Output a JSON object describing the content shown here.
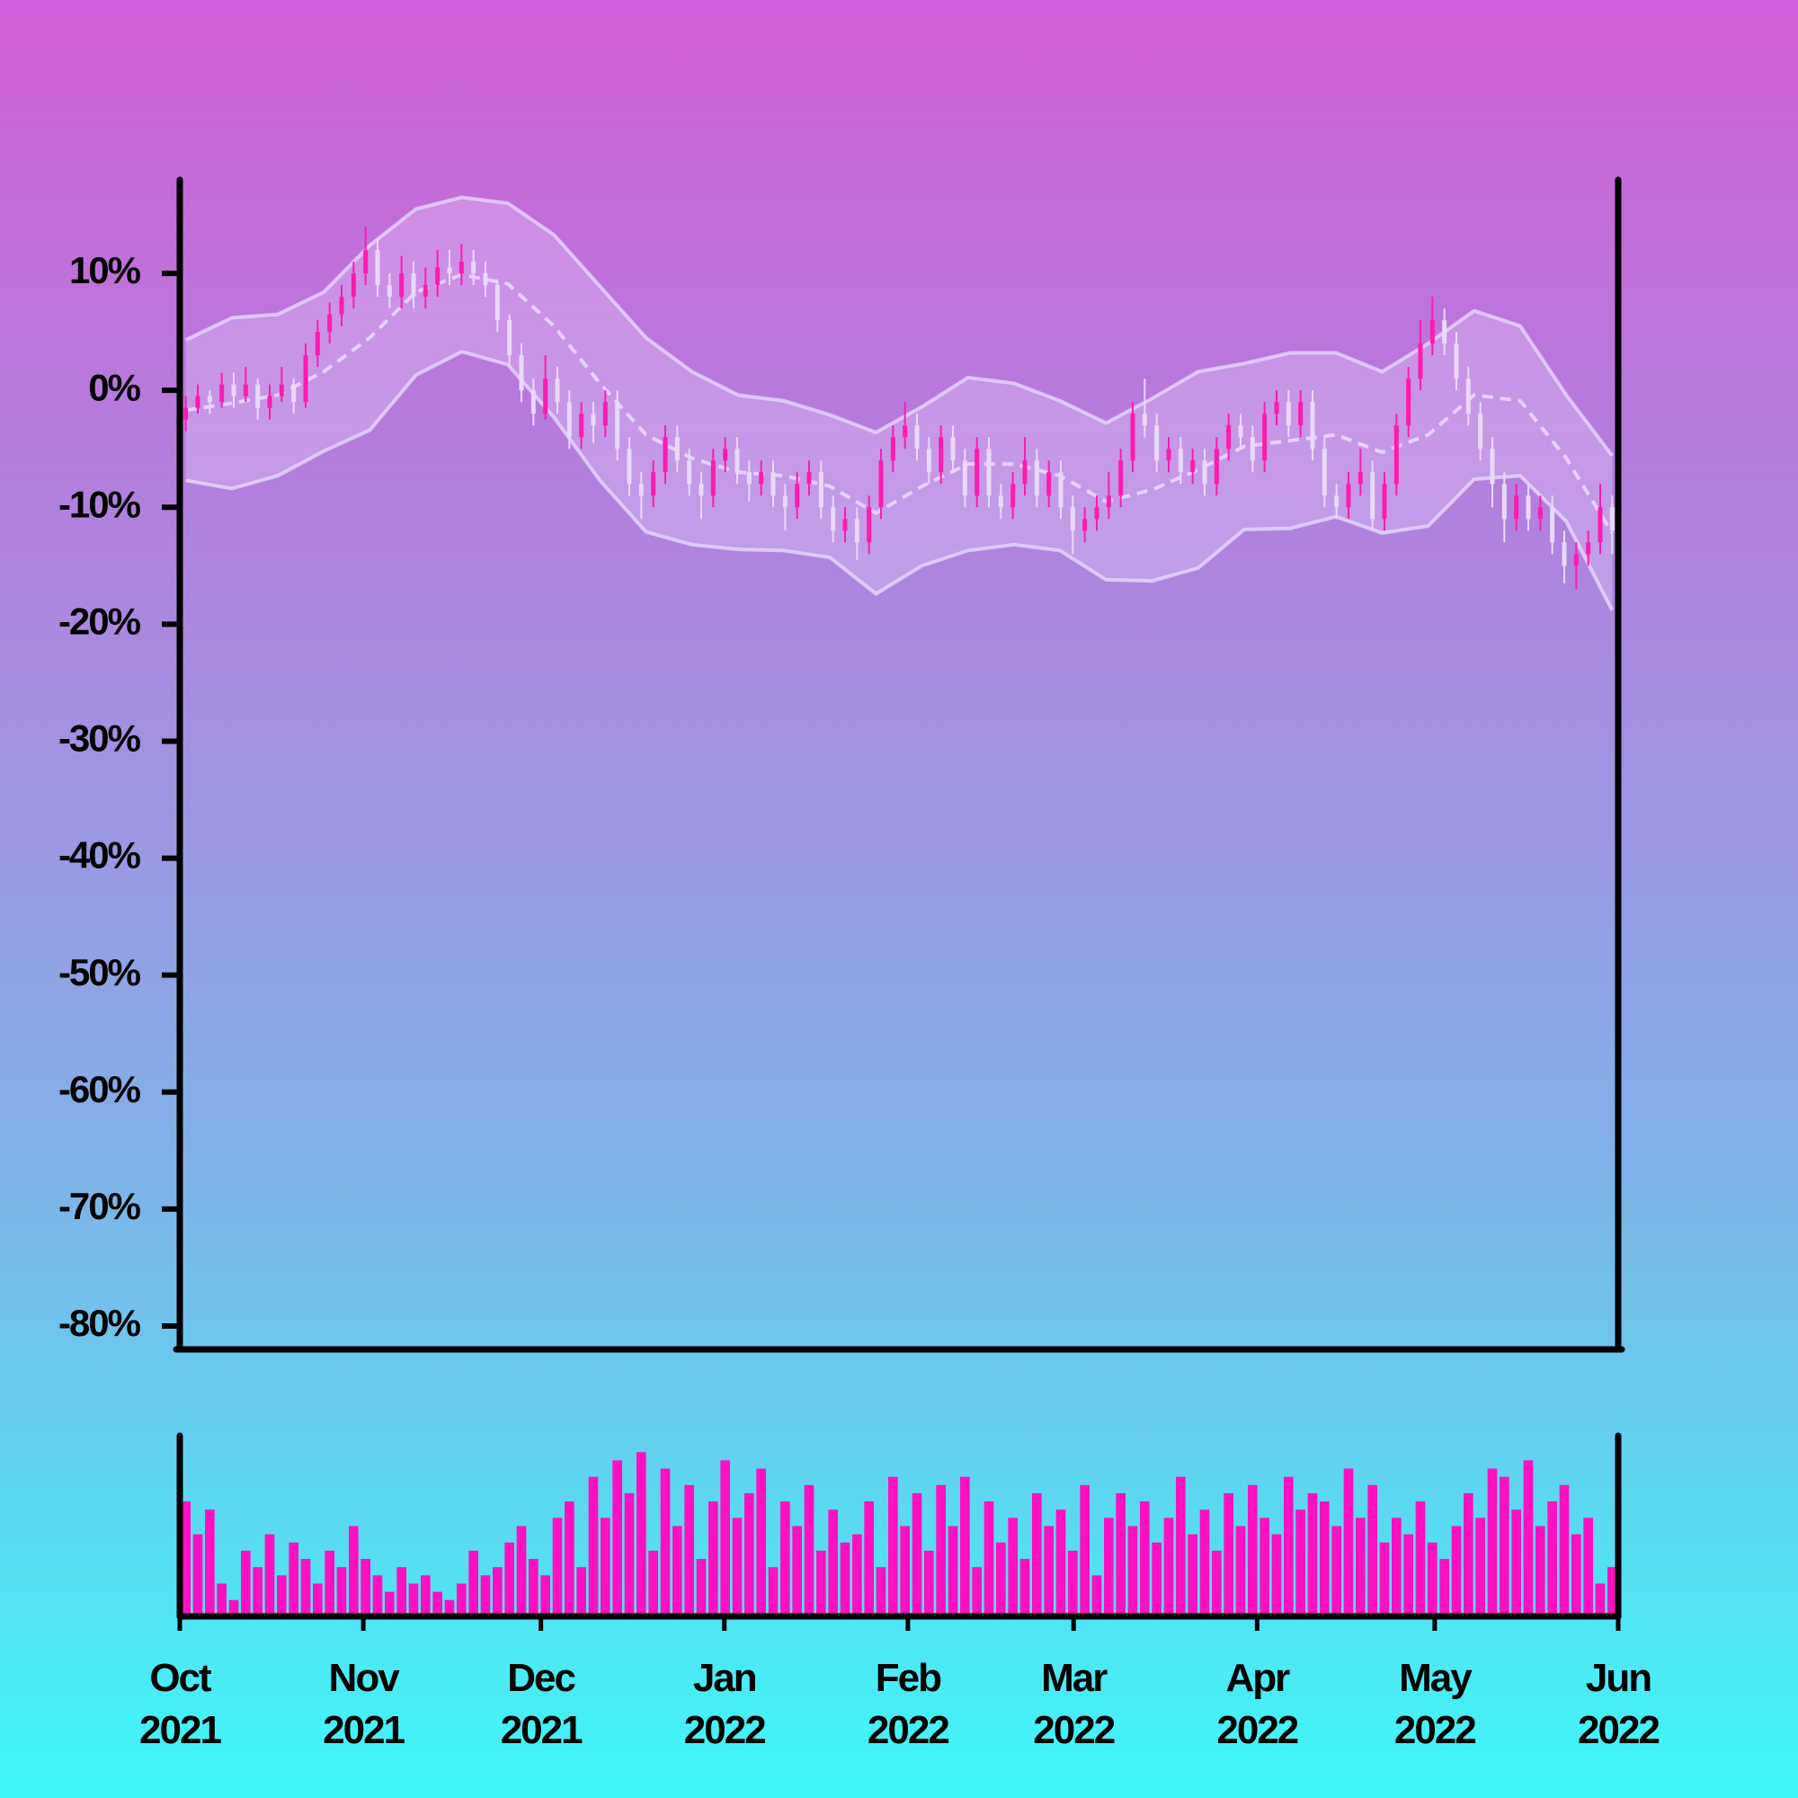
{
  "chart_data": {
    "type": "candlestick",
    "xlim": [
      "2021-10",
      "2022-06"
    ],
    "xticks": [
      {
        "value": "2021-10",
        "label": "Oct 2021"
      },
      {
        "value": "2021-11",
        "label": "Nov 2021"
      },
      {
        "value": "2021-12",
        "label": "Dec 2021"
      },
      {
        "value": "2022-01",
        "label": "Jan 2022"
      },
      {
        "value": "2022-02",
        "label": "Feb 2022"
      },
      {
        "value": "2022-03",
        "label": "Mar 2022"
      },
      {
        "value": "2022-04",
        "label": "Apr 2022"
      },
      {
        "value": "2022-05",
        "label": "May 2022"
      },
      {
        "value": "2022-06",
        "label": "Jun 2022"
      }
    ],
    "ylim": [
      -82,
      18
    ],
    "yticks": [
      {
        "value": 10,
        "label": "10%"
      },
      {
        "value": 0,
        "label": "0%"
      },
      {
        "value": -10,
        "label": "-10%"
      },
      {
        "value": -20,
        "label": "-20%"
      },
      {
        "value": -30,
        "label": "-30%"
      },
      {
        "value": -40,
        "label": "-40%"
      },
      {
        "value": -50,
        "label": "-50%"
      },
      {
        "value": -60,
        "label": "-60%"
      },
      {
        "value": -70,
        "label": "-70%"
      },
      {
        "value": -80,
        "label": "-80%"
      }
    ],
    "up_color": "#ff1ab0",
    "down_color": "#ead8f8",
    "volume_color": "#ff10c0",
    "band_color": "#eadcff",
    "open": [
      -2.5,
      -1.5,
      -0.5,
      -1,
      0.5,
      -0.5,
      0.5,
      -1.5,
      -0.5,
      0.5,
      -1,
      3,
      5,
      6.5,
      8,
      10,
      12,
      9,
      8,
      10,
      8,
      9,
      10.5,
      10,
      11,
      10,
      9,
      6,
      3,
      0,
      -2,
      1,
      -1,
      -4,
      -2,
      -3,
      -1,
      -5,
      -8,
      -9,
      -7,
      -4,
      -6,
      -8,
      -9,
      -6,
      -5,
      -7,
      -8,
      -7,
      -9,
      -10,
      -8,
      -7,
      -10,
      -12,
      -11,
      -13,
      -10,
      -6,
      -4,
      -3,
      -5,
      -7,
      -4,
      -6,
      -9,
      -5,
      -9,
      -10,
      -8,
      -6,
      -9,
      -7,
      -10,
      -12,
      -11,
      -10,
      -9,
      -6,
      -2,
      -3,
      -6,
      -5,
      -7,
      -6,
      -8,
      -5,
      -3,
      -4,
      -6,
      -2,
      -1,
      -3,
      -1,
      -5,
      -9,
      -10,
      -8,
      -7,
      -11,
      -8,
      -3,
      1,
      4,
      6,
      4,
      1,
      -2,
      -5,
      -8,
      -11,
      -9,
      -11,
      -10,
      -13,
      -15,
      -14,
      -13,
      -10
    ],
    "high": [
      -0.5,
      0.5,
      0,
      1.5,
      1.5,
      2,
      1,
      0.5,
      2,
      1,
      4,
      6,
      7.5,
      9,
      11,
      14,
      13,
      10,
      11.5,
      11,
      10.5,
      12,
      12,
      12.5,
      12,
      11,
      9.5,
      6.5,
      4,
      1,
      3,
      2,
      0,
      -1,
      -1,
      0,
      0,
      -4,
      -7,
      -6,
      -3,
      -3,
      -5,
      -7,
      -5,
      -4,
      -4,
      -6,
      -6,
      -6,
      -8,
      -7,
      -6,
      -6,
      -9,
      -10,
      -10,
      -9,
      -5,
      -3,
      -1,
      -2,
      -4,
      -3,
      -3,
      -5,
      -4,
      -4,
      -8,
      -7,
      -4,
      -5,
      -6,
      -6,
      -9,
      -10,
      -9,
      -7,
      -5,
      -1,
      1,
      -2,
      -4,
      -4,
      -5,
      -5,
      -4,
      -2,
      -2,
      -3,
      -1,
      0,
      0,
      0,
      0,
      -4,
      -8,
      -7,
      -5,
      -6,
      -7,
      -2,
      2,
      6,
      8,
      7,
      5,
      2,
      -1,
      -4,
      -7,
      -8,
      -8,
      -9,
      -9,
      -12,
      -13,
      -12,
      -8,
      -9
    ],
    "low": [
      -3.5,
      -2,
      -2,
      -1.5,
      -1.5,
      -1,
      -2.5,
      -2.5,
      -1,
      -2,
      -1.5,
      2,
      4,
      5.5,
      7,
      9,
      8,
      7,
      7,
      7,
      7,
      8,
      9,
      9,
      9,
      8,
      5,
      2,
      -1,
      -3,
      -2.5,
      -2,
      -5,
      -5,
      -4.5,
      -4,
      -6,
      -9,
      -11,
      -10,
      -8,
      -7,
      -9,
      -11,
      -10,
      -7,
      -8,
      -9.5,
      -9,
      -10,
      -12,
      -11,
      -9,
      -11,
      -13,
      -13,
      -14.5,
      -14,
      -11,
      -7,
      -5,
      -6,
      -8,
      -8,
      -7,
      -10,
      -10,
      -10,
      -11,
      -11,
      -9,
      -10,
      -10,
      -11,
      -14,
      -13,
      -12,
      -11,
      -10,
      -7,
      -4,
      -7,
      -7,
      -8,
      -8,
      -9,
      -9,
      -6,
      -5,
      -7,
      -7,
      -3,
      -4,
      -4,
      -6,
      -10,
      -11,
      -11,
      -9,
      -12,
      -12,
      -9,
      -4,
      0,
      3,
      3,
      0,
      -3,
      -6,
      -10,
      -13,
      -12,
      -12,
      -12,
      -14,
      -16.5,
      -17,
      -15,
      -14,
      -14
    ],
    "close": [
      -1.5,
      -0.5,
      -1,
      0.5,
      -0.5,
      0.5,
      -1.5,
      -0.5,
      0.5,
      -1,
      3,
      5,
      6.5,
      8,
      10,
      12,
      9,
      8,
      10,
      8,
      9,
      10.5,
      10,
      11,
      10,
      9,
      6,
      3,
      0,
      -2,
      1,
      -1,
      -4,
      -2,
      -3,
      -1,
      -5,
      -8,
      -9,
      -7,
      -4,
      -6,
      -8,
      -9,
      -6,
      -5,
      -7,
      -8,
      -7,
      -9,
      -10,
      -8,
      -7,
      -10,
      -12,
      -11,
      -13,
      -10,
      -6,
      -4,
      -3,
      -5,
      -7,
      -4,
      -6,
      -9,
      -5,
      -9,
      -10,
      -8,
      -6,
      -9,
      -7,
      -10,
      -12,
      -11,
      -10,
      -9,
      -6,
      -2,
      -3,
      -6,
      -5,
      -7,
      -6,
      -8,
      -5,
      -3,
      -4,
      -6,
      -2,
      -1,
      -3,
      -1,
      -5,
      -9,
      -10,
      -8,
      -7,
      -11,
      -8,
      -3,
      1,
      4,
      6,
      4,
      1,
      -2,
      -5,
      -8,
      -11,
      -9,
      -11,
      -10,
      -13,
      -15,
      -14,
      -13,
      -10,
      -12
    ],
    "volume": [
      70,
      50,
      65,
      20,
      10,
      40,
      30,
      50,
      25,
      45,
      35,
      20,
      40,
      30,
      55,
      35,
      25,
      15,
      30,
      20,
      25,
      15,
      10,
      20,
      40,
      25,
      30,
      45,
      55,
      35,
      25,
      60,
      70,
      30,
      85,
      60,
      95,
      75,
      100,
      40,
      90,
      55,
      80,
      35,
      70,
      95,
      60,
      75,
      90,
      30,
      70,
      55,
      80,
      40,
      65,
      45,
      50,
      70,
      30,
      85,
      55,
      75,
      40,
      80,
      55,
      85,
      30,
      70,
      45,
      60,
      35,
      75,
      55,
      65,
      40,
      80,
      25,
      60,
      75,
      55,
      70,
      45,
      60,
      85,
      50,
      65,
      40,
      75,
      55,
      80,
      60,
      50,
      85,
      65,
      75,
      70,
      55,
      90,
      60,
      80,
      45,
      60,
      50,
      70,
      45,
      35,
      55,
      75,
      60,
      90,
      85,
      65,
      95,
      55,
      70,
      80,
      50,
      60,
      20,
      30
    ],
    "volume_ylim": [
      0,
      110
    ],
    "upper_band": [
      4.3,
      6.2,
      6.5,
      8.4,
      12.4,
      15.5,
      16.5,
      16,
      13.3,
      8.9,
      4.5,
      1.6,
      -0.4,
      -0.9,
      -2.1,
      -3.6,
      -1.4,
      1.1,
      0.6,
      -0.9,
      -2.8,
      -0.7,
      1.6,
      2.3,
      3.2,
      3.2,
      1.6,
      4,
      6.8,
      5.5,
      -0.4,
      -5.6
    ],
    "middle_band": [
      -1.7,
      -1.1,
      -0.4,
      1.6,
      4.5,
      8.4,
      9.9,
      9.1,
      5.5,
      0.6,
      -3.8,
      -5.8,
      -7,
      -7.3,
      -8.2,
      -10.5,
      -8.2,
      -6.3,
      -6.3,
      -7.3,
      -9.5,
      -8.5,
      -6.8,
      -4.8,
      -4.3,
      -3.8,
      -5.3,
      -3.8,
      -0.4,
      -0.9,
      -5.8,
      -12.2
    ],
    "lower_band": [
      -7.7,
      -8.4,
      -7.3,
      -5.2,
      -3.4,
      1.3,
      3.3,
      2.2,
      -2.3,
      -7.7,
      -12.1,
      -13.2,
      -13.6,
      -13.7,
      -14.3,
      -17.4,
      -15,
      -13.7,
      -13.2,
      -13.7,
      -16.2,
      -16.3,
      -15.2,
      -11.9,
      -11.8,
      -10.8,
      -12.2,
      -11.6,
      -7.6,
      -7.3,
      -11.2,
      -18.8
    ]
  }
}
